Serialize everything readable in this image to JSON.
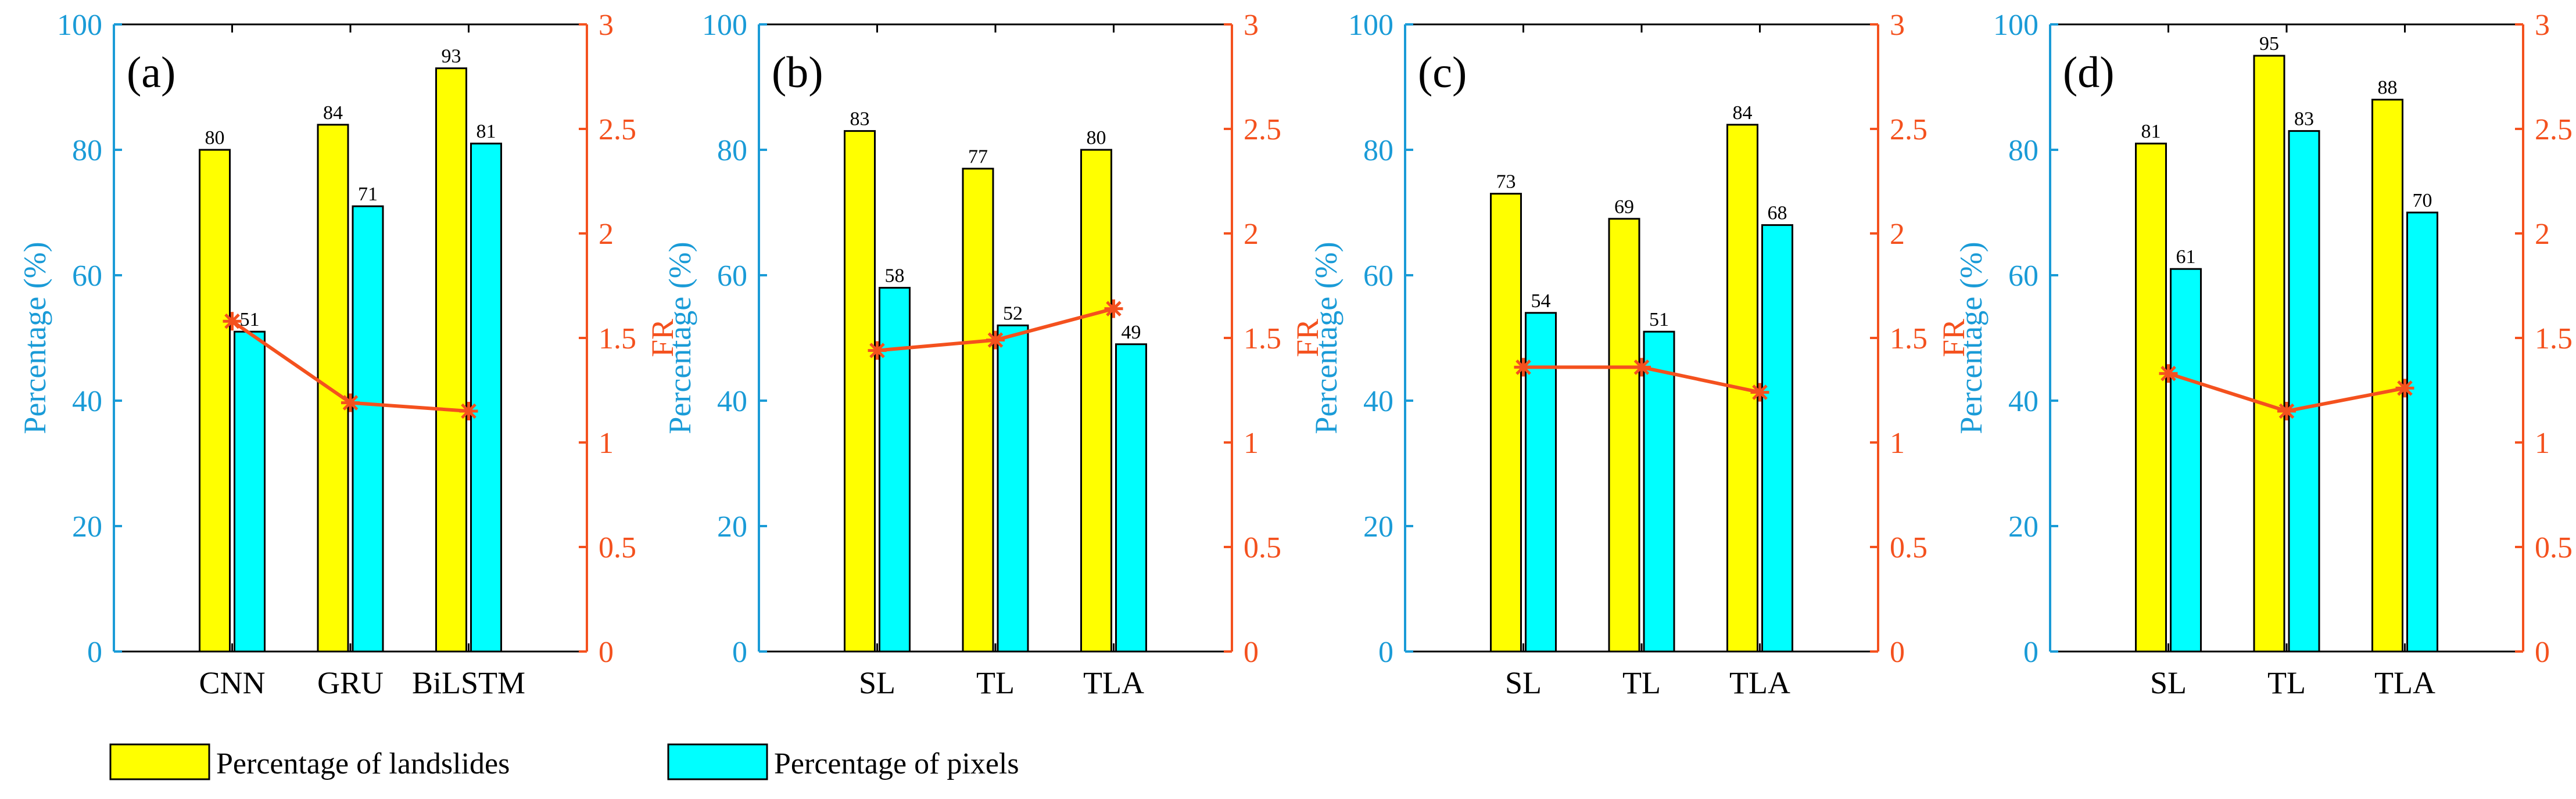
{
  "chart_data": [
    {
      "type": "bar",
      "panel_label": "(a)",
      "categories": [
        "CNN",
        "GRU",
        "BiLSTM"
      ],
      "series": [
        {
          "name": "Percentage of landslides",
          "values": [
            80,
            84,
            93
          ]
        },
        {
          "name": "Percentage of pixels",
          "values": [
            51,
            71,
            81
          ]
        }
      ],
      "fr": [
        1.58,
        1.19,
        1.15
      ],
      "ylabel": "Percentage (%)",
      "ylim": [
        0,
        100
      ],
      "y_ticks": [
        "0",
        "20",
        "40",
        "60",
        "80",
        "100"
      ],
      "y2label": "FR",
      "y2lim": [
        0,
        3
      ],
      "y2_ticks": [
        "0",
        "0.5",
        "1",
        "1.5",
        "2",
        "2.5",
        "3"
      ]
    },
    {
      "type": "bar",
      "panel_label": "(b)",
      "categories": [
        "SL",
        "TL",
        "TLA"
      ],
      "series": [
        {
          "name": "Percentage of landslides",
          "values": [
            83,
            77,
            80
          ]
        },
        {
          "name": "Percentage of pixels",
          "values": [
            58,
            52,
            49
          ]
        }
      ],
      "fr": [
        1.44,
        1.49,
        1.64
      ],
      "ylabel": "Percentage (%)",
      "ylim": [
        0,
        100
      ],
      "y_ticks": [
        "0",
        "20",
        "40",
        "60",
        "80",
        "100"
      ],
      "y2label": "FR",
      "y2lim": [
        0,
        3
      ],
      "y2_ticks": [
        "0",
        "0.5",
        "1",
        "1.5",
        "2",
        "2.5",
        "3"
      ]
    },
    {
      "type": "bar",
      "panel_label": "(c)",
      "categories": [
        "SL",
        "TL",
        "TLA"
      ],
      "series": [
        {
          "name": "Percentage of landslides",
          "values": [
            73,
            69,
            84
          ]
        },
        {
          "name": "Percentage of pixels",
          "values": [
            54,
            51,
            68
          ]
        }
      ],
      "fr": [
        1.36,
        1.36,
        1.24
      ],
      "ylabel": "Percentage (%)",
      "ylim": [
        0,
        100
      ],
      "y_ticks": [
        "0",
        "20",
        "40",
        "60",
        "80",
        "100"
      ],
      "y2label": "FR",
      "y2lim": [
        0,
        3
      ],
      "y2_ticks": [
        "0",
        "0.5",
        "1",
        "1.5",
        "2",
        "2.5",
        "3"
      ]
    },
    {
      "type": "bar",
      "panel_label": "(d)",
      "categories": [
        "SL",
        "TL",
        "TLA"
      ],
      "series": [
        {
          "name": "Percentage of landslides",
          "values": [
            81,
            95,
            88
          ]
        },
        {
          "name": "Percentage of pixels",
          "values": [
            61,
            83,
            70
          ]
        }
      ],
      "fr": [
        1.33,
        1.15,
        1.26
      ],
      "ylabel": "Percentage (%)",
      "ylim": [
        0,
        100
      ],
      "y_ticks": [
        "0",
        "20",
        "40",
        "60",
        "80",
        "100"
      ],
      "y2label": "FR",
      "y2lim": [
        0,
        3
      ],
      "y2_ticks": [
        "0",
        "0.5",
        "1",
        "1.5",
        "2",
        "2.5",
        "3"
      ]
    }
  ],
  "legend": {
    "items": [
      {
        "label": "Percentage of landslides",
        "color": "#ffff00"
      },
      {
        "label": "Percentage of pixels",
        "color": "#00ffff"
      }
    ]
  },
  "colors": {
    "landslides": "#ffff00",
    "pixels": "#00ffff",
    "fr_line": "#f4511e",
    "left_axis": "#1a9bd7",
    "right_axis": "#f4511e"
  }
}
